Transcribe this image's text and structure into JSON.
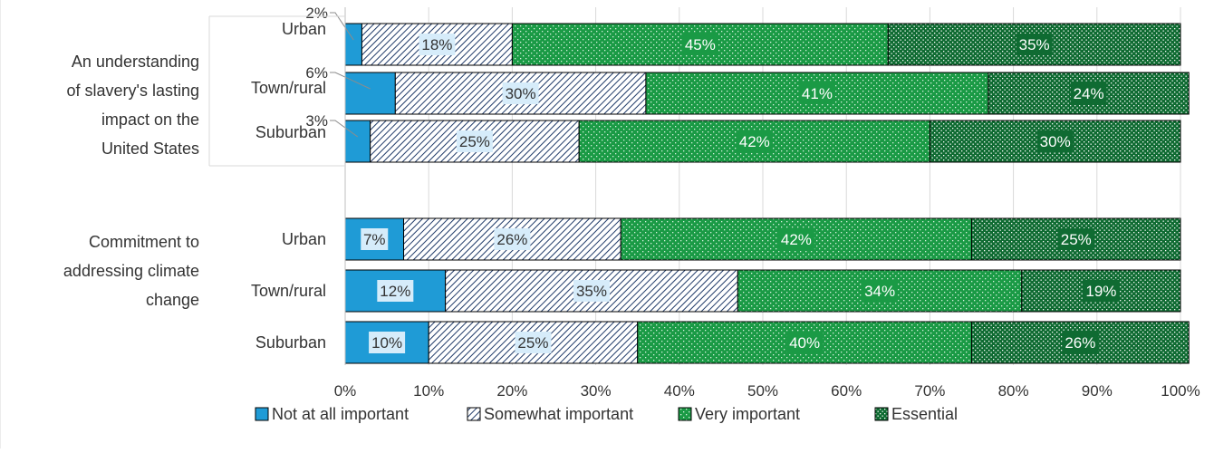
{
  "chart_data": {
    "type": "bar",
    "orientation": "horizontal",
    "stacked": true,
    "percent_stacked": true,
    "xlim": [
      0,
      100
    ],
    "x_ticks": [
      "0%",
      "10%",
      "20%",
      "30%",
      "40%",
      "50%",
      "60%",
      "70%",
      "80%",
      "90%",
      "100%"
    ],
    "grid": true,
    "legend_position": "bottom",
    "groups": [
      {
        "label": "An understanding of slavery's lasting impact on the United States",
        "label_lines": [
          "An understanding",
          "of slavery's lasting",
          "impact on the",
          "United States"
        ],
        "categories": [
          "Urban",
          "Town/rural",
          "Suburban"
        ]
      },
      {
        "label": "Commitment to addressing climate change",
        "label_lines": [
          "Commitment to",
          "addressing climate",
          "change"
        ],
        "categories": [
          "Urban",
          "Town/rural",
          "Suburban"
        ]
      }
    ],
    "series": [
      {
        "name": "Not at all important",
        "color": "#1f9bd6",
        "pattern": "solid",
        "values": [
          [
            2,
            6,
            3
          ],
          [
            7,
            12,
            10
          ]
        ],
        "labels": [
          [
            "2%",
            "6%",
            "3%"
          ],
          [
            "7%",
            "12%",
            "10%"
          ]
        ]
      },
      {
        "name": "Somewhat important",
        "color": "#1f3a68",
        "pattern": "diagonal-hatch",
        "values": [
          [
            18,
            30,
            25
          ],
          [
            26,
            35,
            25
          ]
        ],
        "labels": [
          [
            "18%",
            "30%",
            "25%"
          ],
          [
            "26%",
            "35%",
            "25%"
          ]
        ]
      },
      {
        "name": "Very important",
        "color": "#1a9a45",
        "pattern": "dots-light",
        "values": [
          [
            45,
            41,
            42
          ],
          [
            42,
            34,
            40
          ]
        ],
        "labels": [
          [
            "45%",
            "41%",
            "42%"
          ],
          [
            "42%",
            "34%",
            "40%"
          ]
        ]
      },
      {
        "name": "Essential",
        "color": "#0f6b32",
        "pattern": "dots-dense",
        "values": [
          [
            35,
            24,
            30
          ],
          [
            25,
            19,
            26
          ]
        ],
        "labels": [
          [
            "35%",
            "24%",
            "30%"
          ],
          [
            "25%",
            "19%",
            "26%"
          ]
        ]
      }
    ]
  }
}
